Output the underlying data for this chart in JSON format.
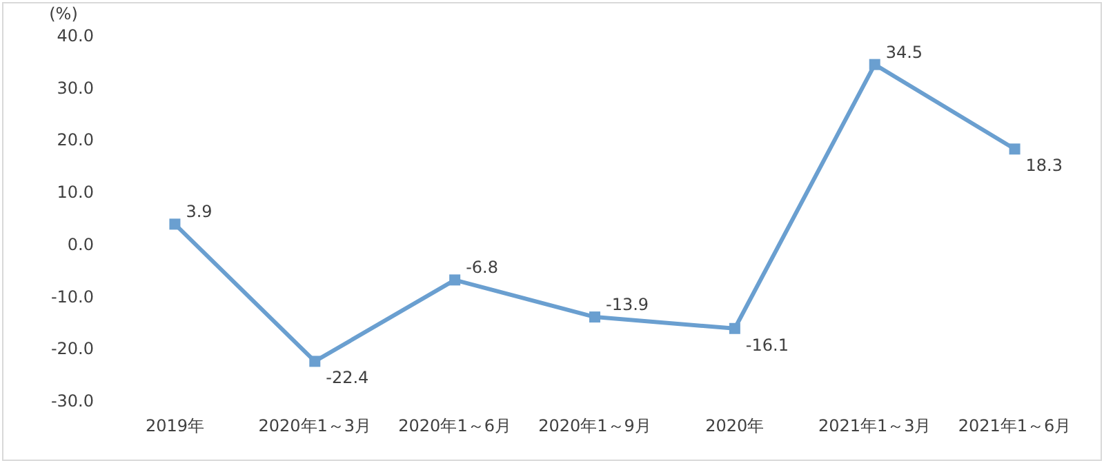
{
  "chart_data": {
    "type": "line",
    "ylabel": "(%)",
    "categories": [
      "2019年",
      "2020年1～3月",
      "2020年1～6月",
      "2020年1～9月",
      "2020年",
      "2021年1～3月",
      "2021年1～6月"
    ],
    "series": [
      {
        "color": "#6a9fd0",
        "values": [
          3.9,
          -22.4,
          -6.8,
          -13.9,
          -16.1,
          34.5,
          18.3
        ]
      }
    ],
    "ylim": [
      -30,
      40
    ],
    "yticks": [
      {
        "value": -30,
        "label": "-30.0"
      },
      {
        "value": -20,
        "label": "-20.0"
      },
      {
        "value": -10,
        "label": "-10.0"
      },
      {
        "value": 0,
        "label": "0.0"
      },
      {
        "value": 10,
        "label": "10.0"
      },
      {
        "value": 20,
        "label": "20.0"
      },
      {
        "value": 30,
        "label": "30.0"
      },
      {
        "value": 40,
        "label": "40.0"
      }
    ],
    "marker": "square",
    "line_style": "solid",
    "data_labels": true
  }
}
